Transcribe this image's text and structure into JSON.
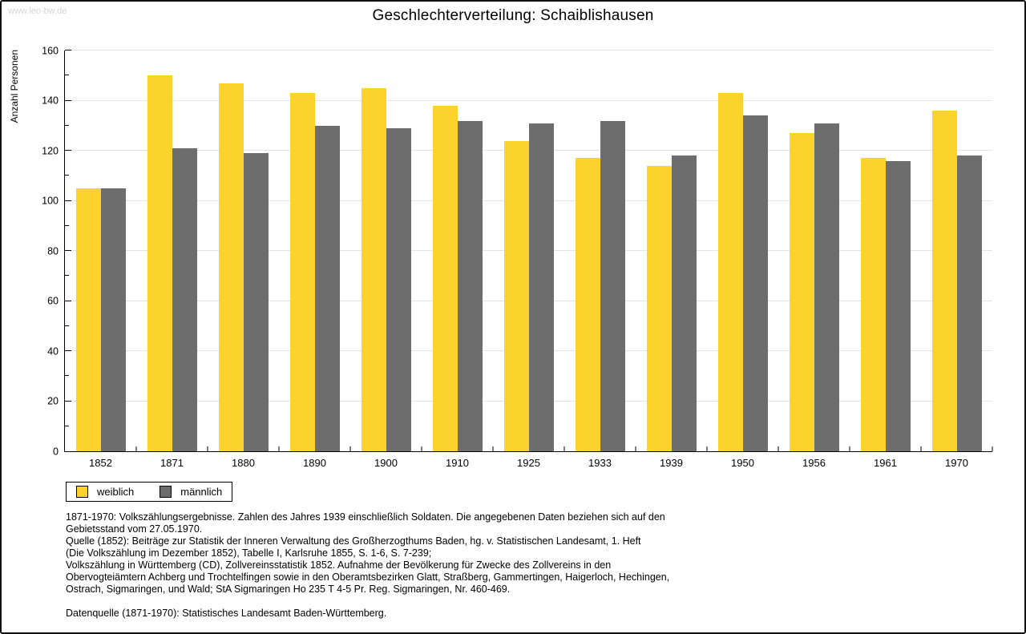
{
  "watermark": "www.leo-bw.de",
  "title": "Geschlechterverteilung: Schaiblishausen",
  "colors": {
    "female": "#fcd32d",
    "male": "#6d6d6d",
    "grid": "#e4e4e4",
    "watermark": "#d6d6d6"
  },
  "chart_data": {
    "type": "bar",
    "title": "Geschlechterverteilung: Schaiblishausen",
    "xlabel": "",
    "ylabel": "Anzahl Personen",
    "ylim": [
      0,
      160
    ],
    "ytick_major": 20,
    "ytick_minor": 10,
    "grid": true,
    "grid_step": 20,
    "legend_position": "bottom-left",
    "categories": [
      "1852",
      "1871",
      "1880",
      "1890",
      "1900",
      "1910",
      "1925",
      "1933",
      "1939",
      "1950",
      "1956",
      "1961",
      "1970"
    ],
    "series": [
      {
        "name": "weiblich",
        "color": "#fcd32d",
        "values": [
          105,
          150,
          147,
          143,
          145,
          138,
          124,
          117,
          114,
          143,
          127,
          117,
          136
        ]
      },
      {
        "name": "männlich",
        "color": "#6d6d6d",
        "values": [
          105,
          121,
          119,
          130,
          129,
          132,
          131,
          132,
          118,
          134,
          131,
          116,
          118
        ]
      }
    ]
  },
  "legend": {
    "items": [
      {
        "label": "weiblich"
      },
      {
        "label": "männlich"
      }
    ]
  },
  "footer": {
    "lines": [
      "1871-1970: Volkszählungsergebnisse. Zahlen des Jahres 1939 einschließlich Soldaten. Die angegebenen Daten beziehen sich auf den",
      "Gebietsstand vom 27.05.1970.",
      "Quelle (1852): Beiträge zur Statistik der Inneren Verwaltung des Großherzogthums Baden, hg. v. Statistischen Landesamt, 1. Heft",
      "(Die Volkszählung im Dezember 1852), Tabelle I, Karlsruhe 1855, S. 1-6, S. 7-239;",
      "Volkszählung in Württemberg (CD), Zollvereinsstatistik 1852. Aufnahme der Bevölkerung für Zwecke des Zollvereins in den",
      "Obervogteiämtern Achberg und Trochtelfingen sowie in den Oberamtsbezirken Glatt, Straßberg, Gammertingen, Haigerloch, Hechingen,",
      "Ostrach, Sigmaringen, und Wald; StA Sigmaringen Ho 235 T 4-5 Pr. Reg. Sigmaringen, Nr. 460-469."
    ],
    "datenquelle": "Datenquelle (1871-1970): Statistisches Landesamt Baden-Württemberg."
  }
}
